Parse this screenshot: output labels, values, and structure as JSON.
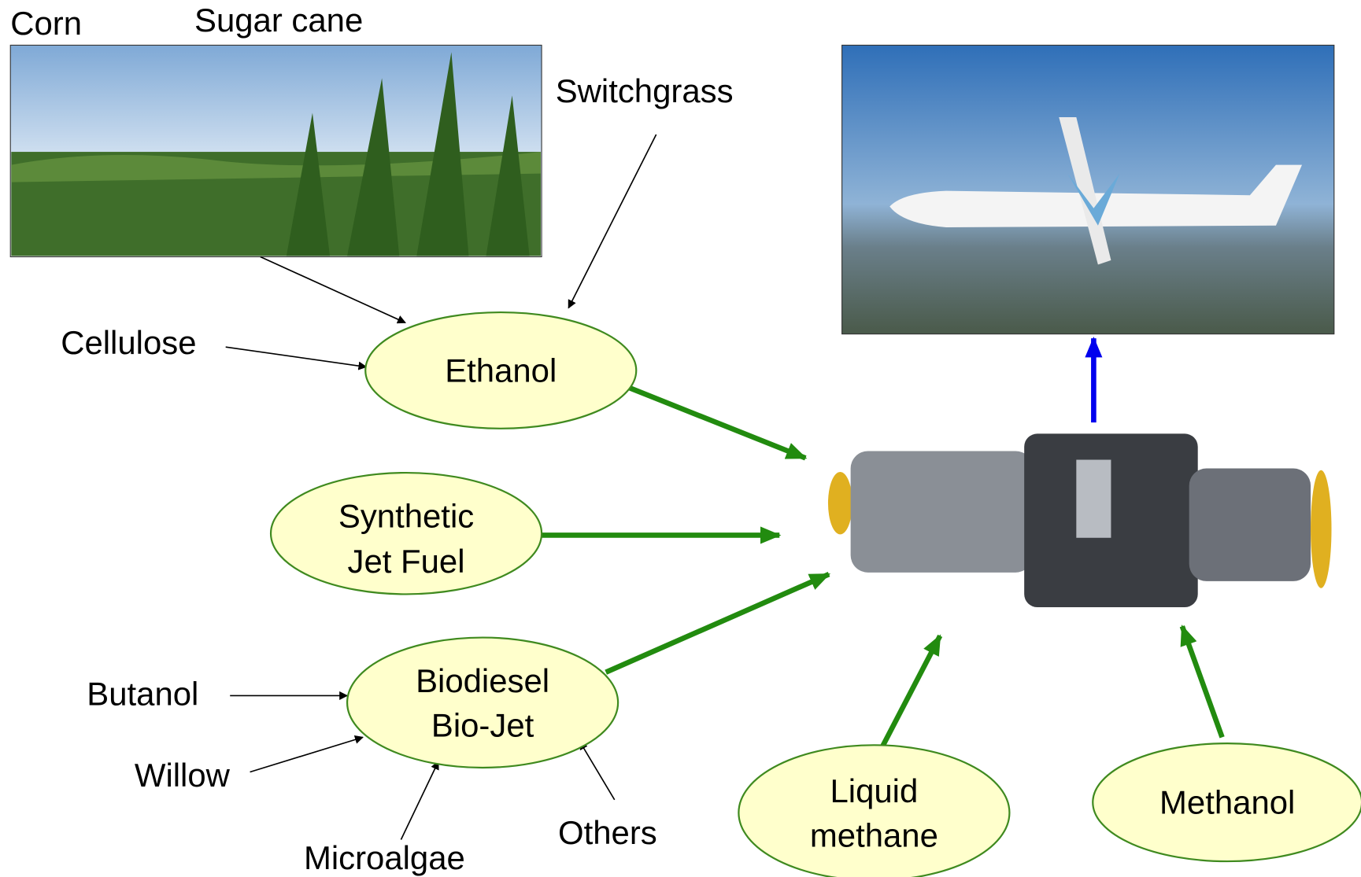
{
  "sources": {
    "corn": "Corn",
    "sugar_cane": "Sugar cane",
    "switchgrass": "Switchgrass",
    "cellulose": "Cellulose",
    "butanol": "Butanol",
    "willow": "Willow",
    "microalgae": "Microalgae",
    "others": "Others"
  },
  "nodes": [
    {
      "lines": [
        "Ethanol"
      ]
    },
    {
      "lines": [
        "Synthetic",
        "Jet Fuel"
      ]
    },
    {
      "lines": [
        "Biodiesel",
        "Bio-Jet"
      ]
    },
    {
      "lines": [
        "Liquid",
        "methane"
      ]
    },
    {
      "lines": [
        "Methanol"
      ]
    }
  ]
}
